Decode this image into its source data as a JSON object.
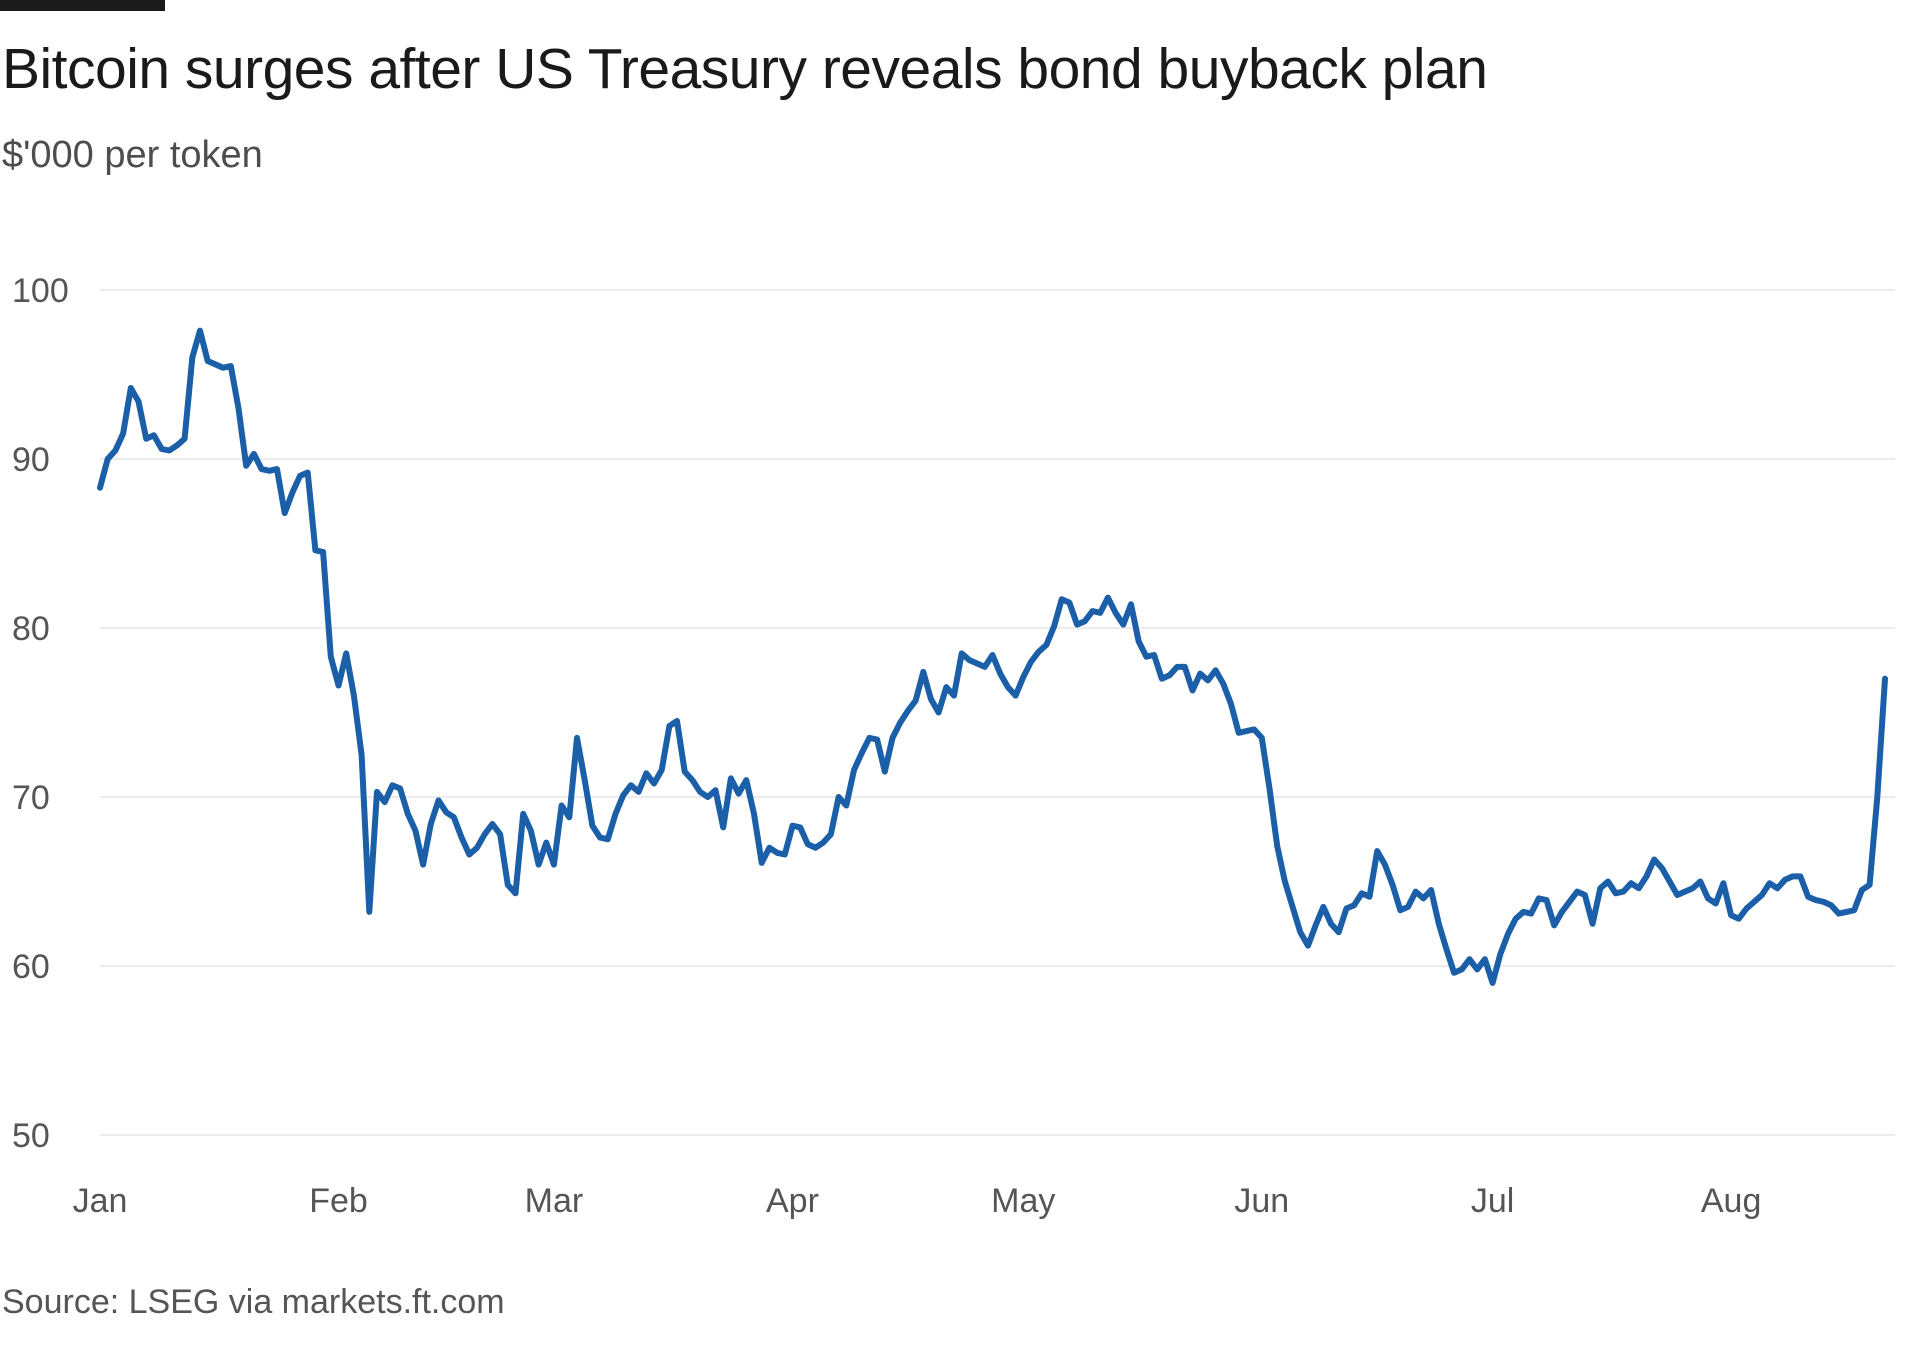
{
  "header": {
    "title": "Bitcoin surges after US Treasury reveals bond buyback plan",
    "subtitle": "$'000 per token"
  },
  "footer": {
    "source": "Source: LSEG via markets.ft.com"
  },
  "colors": {
    "line": "#1b5fa8",
    "grid": "#ececec",
    "brand_bar": "#1a1a1a"
  },
  "chart_data": {
    "type": "line",
    "title": "Bitcoin surges after US Treasury reveals bond buyback plan",
    "ylabel": "$'000 per token",
    "xlabel": "",
    "ylim": [
      50,
      100
    ],
    "yticks": [
      100,
      90,
      80,
      70,
      60,
      50
    ],
    "grid": true,
    "legend": "none",
    "xaxis": {
      "start": "2025-01-01",
      "end": "2025-08-21",
      "ticks": [
        {
          "label": "Jan",
          "date": "2025-01-01"
        },
        {
          "label": "Feb",
          "date": "2025-02-01"
        },
        {
          "label": "Mar",
          "date": "2025-03-01"
        },
        {
          "label": "Apr",
          "date": "2025-04-01"
        },
        {
          "label": "May",
          "date": "2025-05-01"
        },
        {
          "label": "Jun",
          "date": "2025-06-01"
        },
        {
          "label": "Jul",
          "date": "2025-07-01"
        },
        {
          "label": "Aug",
          "date": "2025-08-01"
        }
      ]
    },
    "series": [
      {
        "x": [
          "2025-01-01",
          "2025-01-02",
          "2025-01-03",
          "2025-01-04",
          "2025-01-05",
          "2025-01-06",
          "2025-01-07",
          "2025-01-08",
          "2025-01-09",
          "2025-01-10",
          "2025-01-11",
          "2025-01-12",
          "2025-01-13",
          "2025-01-14",
          "2025-01-15",
          "2025-01-16",
          "2025-01-17",
          "2025-01-18",
          "2025-01-19",
          "2025-01-20",
          "2025-01-21",
          "2025-01-22",
          "2025-01-23",
          "2025-01-24",
          "2025-01-25",
          "2025-01-26",
          "2025-01-27",
          "2025-01-28",
          "2025-01-29",
          "2025-01-30",
          "2025-01-31",
          "2025-02-01",
          "2025-02-02",
          "2025-02-03",
          "2025-02-04",
          "2025-02-05",
          "2025-02-06",
          "2025-02-07",
          "2025-02-08",
          "2025-02-09",
          "2025-02-10",
          "2025-02-11",
          "2025-02-12",
          "2025-02-13",
          "2025-02-14",
          "2025-02-15",
          "2025-02-16",
          "2025-02-17",
          "2025-02-18",
          "2025-02-19",
          "2025-02-20",
          "2025-02-21",
          "2025-02-22",
          "2025-02-23",
          "2025-02-24",
          "2025-02-25",
          "2025-02-26",
          "2025-02-27",
          "2025-02-28",
          "2025-03-01",
          "2025-03-02",
          "2025-03-03",
          "2025-03-04",
          "2025-03-05",
          "2025-03-06",
          "2025-03-07",
          "2025-03-08",
          "2025-03-09",
          "2025-03-10",
          "2025-03-11",
          "2025-03-12",
          "2025-03-13",
          "2025-03-14",
          "2025-03-15",
          "2025-03-16",
          "2025-03-17",
          "2025-03-18",
          "2025-03-19",
          "2025-03-20",
          "2025-03-21",
          "2025-03-22",
          "2025-03-23",
          "2025-03-24",
          "2025-03-25",
          "2025-03-26",
          "2025-03-27",
          "2025-03-28",
          "2025-03-29",
          "2025-03-30",
          "2025-03-31",
          "2025-04-01",
          "2025-04-02",
          "2025-04-03",
          "2025-04-04",
          "2025-04-05",
          "2025-04-06",
          "2025-04-07",
          "2025-04-08",
          "2025-04-09",
          "2025-04-10",
          "2025-04-11",
          "2025-04-12",
          "2025-04-13",
          "2025-04-14",
          "2025-04-15",
          "2025-04-16",
          "2025-04-17",
          "2025-04-18",
          "2025-04-19",
          "2025-04-20",
          "2025-04-21",
          "2025-04-22",
          "2025-04-23",
          "2025-04-24",
          "2025-04-25",
          "2025-04-26",
          "2025-04-27",
          "2025-04-28",
          "2025-04-29",
          "2025-04-30",
          "2025-05-01",
          "2025-05-02",
          "2025-05-03",
          "2025-05-04",
          "2025-05-05",
          "2025-05-06",
          "2025-05-07",
          "2025-05-08",
          "2025-05-09",
          "2025-05-10",
          "2025-05-11",
          "2025-05-12",
          "2025-05-13",
          "2025-05-14",
          "2025-05-15",
          "2025-05-16",
          "2025-05-17",
          "2025-05-18",
          "2025-05-19",
          "2025-05-20",
          "2025-05-21",
          "2025-05-22",
          "2025-05-23",
          "2025-05-24",
          "2025-05-25",
          "2025-05-26",
          "2025-05-27",
          "2025-05-28",
          "2025-05-29",
          "2025-05-30",
          "2025-05-31",
          "2025-06-01",
          "2025-06-02",
          "2025-06-03",
          "2025-06-04",
          "2025-06-05",
          "2025-06-06",
          "2025-06-07",
          "2025-06-08",
          "2025-06-09",
          "2025-06-10",
          "2025-06-11",
          "2025-06-12",
          "2025-06-13",
          "2025-06-14",
          "2025-06-15",
          "2025-06-16",
          "2025-06-17",
          "2025-06-18",
          "2025-06-19",
          "2025-06-20",
          "2025-06-21",
          "2025-06-22",
          "2025-06-23",
          "2025-06-24",
          "2025-06-25",
          "2025-06-26",
          "2025-06-27",
          "2025-06-28",
          "2025-06-29",
          "2025-06-30",
          "2025-07-01",
          "2025-07-02",
          "2025-07-03",
          "2025-07-04",
          "2025-07-05",
          "2025-07-06",
          "2025-07-07",
          "2025-07-08",
          "2025-07-09",
          "2025-07-10",
          "2025-07-11",
          "2025-07-12",
          "2025-07-13",
          "2025-07-14",
          "2025-07-15",
          "2025-07-16",
          "2025-07-17",
          "2025-07-18",
          "2025-07-19",
          "2025-07-20",
          "2025-07-21",
          "2025-07-22",
          "2025-07-23",
          "2025-07-24",
          "2025-07-25",
          "2025-07-26",
          "2025-07-27",
          "2025-07-28",
          "2025-07-29",
          "2025-07-30",
          "2025-07-31",
          "2025-08-01",
          "2025-08-02",
          "2025-08-03",
          "2025-08-04",
          "2025-08-05",
          "2025-08-06",
          "2025-08-07",
          "2025-08-08",
          "2025-08-09",
          "2025-08-10",
          "2025-08-11",
          "2025-08-12",
          "2025-08-13",
          "2025-08-14",
          "2025-08-15",
          "2025-08-16",
          "2025-08-17",
          "2025-08-18",
          "2025-08-19",
          "2025-08-20",
          "2025-08-21"
        ],
        "y": [
          88.3,
          90.0,
          90.5,
          91.5,
          94.2,
          93.4,
          91.2,
          91.4,
          90.6,
          90.5,
          90.8,
          91.2,
          96.0,
          97.6,
          95.8,
          95.6,
          95.4,
          95.5,
          93.0,
          89.6,
          90.3,
          89.4,
          89.3,
          89.4,
          86.8,
          88.0,
          89.0,
          89.2,
          84.6,
          84.5,
          78.3,
          76.6,
          78.5,
          76.0,
          72.5,
          63.2,
          70.3,
          69.7,
          70.7,
          70.5,
          69.0,
          68.0,
          66.0,
          68.4,
          69.8,
          69.1,
          68.8,
          67.6,
          66.6,
          67.0,
          67.8,
          68.4,
          67.8,
          64.8,
          64.3,
          69.0,
          68.0,
          66.0,
          67.3,
          66.0,
          69.5,
          68.8,
          73.5,
          71.0,
          68.3,
          67.6,
          67.5,
          69.0,
          70.1,
          70.7,
          70.3,
          71.4,
          70.8,
          71.6,
          74.2,
          74.5,
          71.5,
          71.0,
          70.3,
          70.0,
          70.4,
          68.2,
          71.1,
          70.2,
          71.0,
          69.0,
          66.1,
          67.0,
          66.7,
          66.6,
          68.3,
          68.2,
          67.2,
          67.0,
          67.3,
          67.8,
          70.0,
          69.5,
          71.6,
          72.6,
          73.5,
          73.4,
          71.5,
          73.5,
          74.4,
          75.1,
          75.7,
          77.4,
          75.8,
          75.0,
          76.5,
          76.0,
          78.5,
          78.1,
          77.9,
          77.7,
          78.4,
          77.3,
          76.5,
          76.0,
          77.1,
          78.0,
          78.6,
          79.0,
          80.1,
          81.7,
          81.5,
          80.2,
          80.4,
          81.0,
          80.9,
          81.8,
          80.9,
          80.2,
          81.4,
          79.2,
          78.3,
          78.4,
          77.0,
          77.2,
          77.7,
          77.7,
          76.3,
          77.3,
          76.9,
          77.5,
          76.7,
          75.5,
          73.8,
          73.9,
          74.0,
          73.5,
          70.5,
          67.1,
          65.0,
          63.5,
          62.0,
          61.2,
          62.4,
          63.5,
          62.5,
          62.0,
          63.4,
          63.6,
          64.3,
          64.1,
          66.8,
          66.0,
          64.8,
          63.3,
          63.5,
          64.4,
          64.0,
          64.5,
          62.5,
          61.0,
          59.6,
          59.8,
          60.4,
          59.8,
          60.4,
          59.0,
          60.7,
          61.9,
          62.8,
          63.2,
          63.1,
          64.0,
          63.9,
          62.4,
          63.2,
          63.8,
          64.4,
          64.2,
          62.5,
          64.6,
          65.0,
          64.3,
          64.4,
          64.9,
          64.6,
          65.3,
          66.3,
          65.8,
          65.0,
          64.2,
          64.4,
          64.6,
          65.0,
          64.0,
          63.7,
          64.9,
          63.0,
          62.8,
          63.4,
          63.8,
          64.2,
          64.9,
          64.6,
          65.1,
          65.3,
          65.3,
          64.1,
          63.9,
          63.8,
          63.6,
          63.1,
          63.2,
          63.3,
          64.5,
          64.8,
          70.0,
          77.0
        ]
      }
    ]
  }
}
